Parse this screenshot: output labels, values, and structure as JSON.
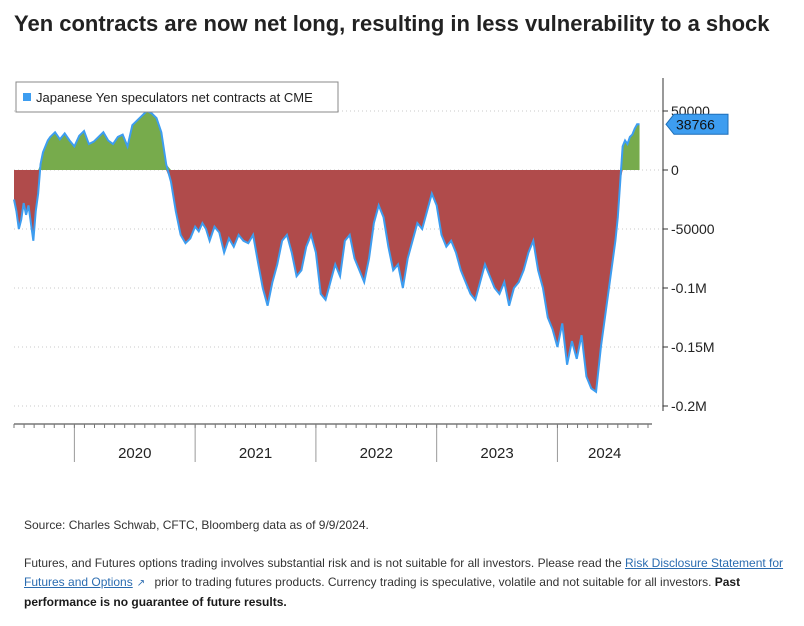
{
  "title": "Yen contracts are now net long, resulting in less vulnerability to a shock",
  "source": "Source: Charles Schwab, CFTC, Bloomberg data as of 9/9/2024.",
  "disclaimer": {
    "text1": "Futures, and Futures options trading involves substantial risk and is not suitable for all investors. Please read the ",
    "link": "Risk Disclosure Statement for Futures and Options",
    "link_icon": "external-link-icon",
    "text2": " prior to trading futures products. Currency trading is speculative, volatile and not suitable for all investors. ",
    "bold": "Past performance is no guarantee of future results."
  },
  "colors": {
    "positive_fill": "#77ab4c",
    "negative_fill": "#b04b4b",
    "line": "#3d9df0",
    "last_value_badge": "#3d9df0"
  },
  "chart_data": {
    "type": "area",
    "legend": "Japanese Yen speculators net contracts at CME",
    "legend_position": "top-left",
    "x_ticks": [
      "2020",
      "2021",
      "2022",
      "2023",
      "2024"
    ],
    "y_ticks": [
      "50000",
      "0",
      "-50000",
      "-0.1M",
      "-0.15M",
      "-0.2M"
    ],
    "y_tick_values": [
      50000,
      0,
      -50000,
      -100000,
      -150000,
      -200000
    ],
    "ylim": [
      -210000,
      75000
    ],
    "xlim": [
      2019.5,
      2024.75
    ],
    "last_value_label": "38766",
    "grid": "horizontal dotted",
    "series": [
      {
        "name": "Japanese Yen speculators net contracts at CME",
        "x": [
          2019.5,
          2019.52,
          2019.54,
          2019.56,
          2019.58,
          2019.6,
          2019.62,
          2019.64,
          2019.66,
          2019.68,
          2019.7,
          2019.72,
          2019.74,
          2019.76,
          2019.78,
          2019.8,
          2019.84,
          2019.88,
          2019.92,
          2019.96,
          2020.0,
          2020.04,
          2020.08,
          2020.12,
          2020.16,
          2020.2,
          2020.24,
          2020.28,
          2020.32,
          2020.36,
          2020.4,
          2020.44,
          2020.48,
          2020.52,
          2020.56,
          2020.6,
          2020.64,
          2020.68,
          2020.72,
          2020.76,
          2020.8,
          2020.84,
          2020.88,
          2020.92,
          2020.96,
          2021.0,
          2021.03,
          2021.06,
          2021.09,
          2021.12,
          2021.16,
          2021.2,
          2021.24,
          2021.28,
          2021.32,
          2021.36,
          2021.4,
          2021.44,
          2021.48,
          2021.52,
          2021.56,
          2021.6,
          2021.64,
          2021.68,
          2021.72,
          2021.76,
          2021.8,
          2021.84,
          2021.88,
          2021.92,
          2021.96,
          2022.0,
          2022.04,
          2022.08,
          2022.12,
          2022.16,
          2022.2,
          2022.24,
          2022.28,
          2022.32,
          2022.36,
          2022.4,
          2022.44,
          2022.48,
          2022.52,
          2022.56,
          2022.6,
          2022.64,
          2022.68,
          2022.72,
          2022.76,
          2022.8,
          2022.84,
          2022.88,
          2022.92,
          2022.96,
          2023.0,
          2023.04,
          2023.08,
          2023.12,
          2023.16,
          2023.2,
          2023.24,
          2023.28,
          2023.32,
          2023.36,
          2023.4,
          2023.44,
          2023.48,
          2023.52,
          2023.56,
          2023.6,
          2023.64,
          2023.68,
          2023.72,
          2023.76,
          2023.8,
          2023.84,
          2023.88,
          2023.92,
          2023.96,
          2024.0,
          2024.04,
          2024.08,
          2024.12,
          2024.16,
          2024.2,
          2024.24,
          2024.28,
          2024.32,
          2024.36,
          2024.4,
          2024.44,
          2024.48,
          2024.5,
          2024.52,
          2024.54,
          2024.56,
          2024.58,
          2024.6,
          2024.62,
          2024.64,
          2024.66,
          2024.68
        ],
        "values": [
          -25000,
          -35000,
          -50000,
          -42000,
          -28000,
          -38000,
          -30000,
          -45000,
          -60000,
          -35000,
          -20000,
          5000,
          15000,
          20000,
          25000,
          28000,
          32000,
          26000,
          31000,
          25000,
          20000,
          29000,
          33000,
          22000,
          24000,
          28000,
          32000,
          25000,
          22000,
          28000,
          30000,
          20000,
          38000,
          42000,
          46000,
          50000,
          48000,
          44000,
          32000,
          5000,
          -10000,
          -35000,
          -55000,
          -62000,
          -58000,
          -48000,
          -52000,
          -45000,
          -50000,
          -60000,
          -48000,
          -53000,
          -70000,
          -58000,
          -65000,
          -55000,
          -60000,
          -62000,
          -55000,
          -78000,
          -100000,
          -115000,
          -95000,
          -80000,
          -60000,
          -55000,
          -70000,
          -90000,
          -85000,
          -65000,
          -55000,
          -70000,
          -105000,
          -110000,
          -95000,
          -80000,
          -90000,
          -60000,
          -55000,
          -75000,
          -85000,
          -95000,
          -75000,
          -45000,
          -30000,
          -40000,
          -65000,
          -85000,
          -80000,
          -100000,
          -75000,
          -60000,
          -45000,
          -50000,
          -35000,
          -20000,
          -30000,
          -55000,
          -65000,
          -60000,
          -70000,
          -85000,
          -95000,
          -105000,
          -110000,
          -95000,
          -80000,
          -90000,
          -100000,
          -105000,
          -95000,
          -115000,
          -100000,
          -95000,
          -85000,
          -70000,
          -60000,
          -85000,
          -100000,
          -125000,
          -135000,
          -150000,
          -130000,
          -165000,
          -145000,
          -160000,
          -140000,
          -175000,
          -185000,
          -188000,
          -150000,
          -120000,
          -90000,
          -60000,
          -40000,
          -10000,
          20000,
          25000,
          22000,
          28000,
          30000,
          35000,
          38766,
          38766
        ]
      }
    ]
  }
}
